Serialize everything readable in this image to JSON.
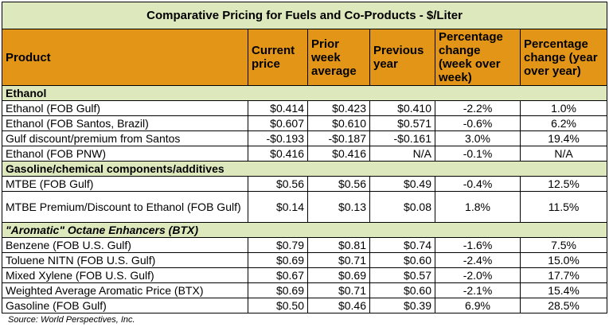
{
  "title": "Comparative Pricing for Fuels and Co-Products - $/Liter",
  "headers": [
    "Product",
    "Current price",
    "Prior week average",
    "Previous year",
    "Percentage change (week over week)",
    "Percentage change (year over year)"
  ],
  "sections": [
    {
      "name": "Ethanol",
      "italic": false,
      "rows": [
        [
          "Ethanol (FOB Gulf)",
          "$0.414",
          "$0.423",
          "$0.410",
          "-2.2%",
          "1.0%"
        ],
        [
          "Ethanol (FOB Santos, Brazil)",
          "$0.607",
          "$0.610",
          "$0.571",
          "-0.6%",
          "6.2%"
        ],
        [
          "Gulf discount/premium from Santos",
          "-$0.193",
          "-$0.187",
          "-$0.161",
          "3.0%",
          "19.4%"
        ],
        [
          "Ethanol (FOB PNW)",
          "$0.416",
          "$0.416",
          "N/A",
          "-0.1%",
          "N/A"
        ]
      ]
    },
    {
      "name": "Gasoline/chemical components/additives",
      "italic": false,
      "rows": [
        [
          "MTBE (FOB Gulf)",
          "$0.56",
          "$0.56",
          "$0.49",
          "-0.4%",
          "12.5%"
        ],
        [
          "MTBE Premium/Discount to Ethanol (FOB Gulf)",
          "$0.14",
          "$0.13",
          "$0.08",
          "1.8%",
          "11.5%"
        ]
      ]
    },
    {
      "name": "\"Aromatic\" Octane Enhancers (BTX)",
      "italic": true,
      "rows": [
        [
          "Benzene (FOB U.S. Gulf)",
          "$0.79",
          "$0.81",
          "$0.74",
          "-1.6%",
          "7.5%"
        ],
        [
          "Toluene NITN (FOB U.S. Gulf)",
          "$0.69",
          "$0.71",
          "$0.60",
          "-2.4%",
          "15.0%"
        ],
        [
          "Mixed Xylene (FOB U.S. Gulf)",
          "$0.67",
          "$0.69",
          "$0.57",
          "-2.0%",
          "17.7%"
        ],
        [
          "Weighted Average Aromatic Price (BTX)",
          "$0.69",
          "$0.71",
          "$0.60",
          "-2.1%",
          "15.4%"
        ],
        [
          "Gasoline (FOB Gulf)",
          "$0.50",
          "$0.46",
          "$0.39",
          "6.9%",
          "28.5%"
        ]
      ]
    }
  ],
  "source": "Source: World Perspectives, Inc.",
  "colors": {
    "title_bg": "#dde9bc",
    "header_bg": "#e39518",
    "section_bg": "#dde9bc"
  }
}
